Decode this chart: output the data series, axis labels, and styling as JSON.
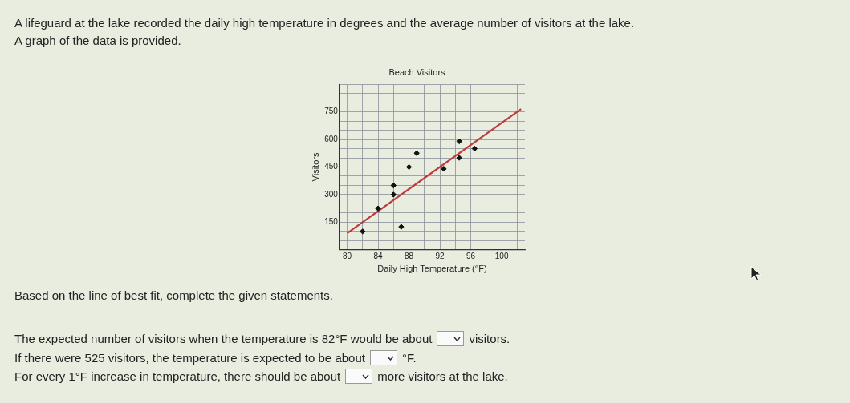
{
  "chart_data": {
    "type": "scatter",
    "title": "Beach Visitors",
    "xlabel": "Daily High Temperature (°F)",
    "ylabel": "Visitors",
    "x": [
      82,
      84,
      86,
      86,
      87,
      88,
      89,
      92.5,
      94.5,
      94.5,
      96.5
    ],
    "series": [
      {
        "marker": "diamond",
        "color": "#111111",
        "values": [
          100,
          225,
          350,
          300,
          125,
          450,
          525,
          440,
          500,
          590,
          550
        ]
      },
      {
        "type": "line",
        "marker": "none",
        "color": "#c0393b",
        "x": [
          80,
          102.5
        ],
        "values": [
          90,
          765
        ]
      }
    ],
    "grid": true,
    "legend": false,
    "xlim": [
      79,
      103
    ],
    "ylim": [
      0,
      900
    ],
    "xticks": [
      80,
      {
        "value": 82,
        "label": null
      },
      84,
      {
        "value": 86,
        "label": null
      },
      88,
      {
        "value": 90,
        "label": null
      },
      92,
      {
        "value": 94,
        "label": null
      },
      96,
      {
        "value": 98,
        "label": null
      },
      100,
      {
        "value": 102,
        "label": null
      }
    ],
    "yticks": [
      {
        "value": 0,
        "label": null
      },
      {
        "value": 50,
        "label": null
      },
      {
        "value": 100,
        "label": null
      },
      150,
      {
        "value": 200,
        "label": null
      },
      {
        "value": 250,
        "label": null
      },
      300,
      {
        "value": 350,
        "label": null
      },
      {
        "value": 400,
        "label": null
      },
      450,
      {
        "value": 500,
        "label": null
      },
      {
        "value": 550,
        "label": null
      },
      600,
      {
        "value": 650,
        "label": null
      },
      {
        "value": 700,
        "label": null
      },
      750,
      {
        "value": 800,
        "label": null
      },
      {
        "value": 850,
        "label": null
      },
      {
        "value": 900,
        "label": null
      }
    ],
    "annotations": [
      "A lifeguard at the lake recorded the daily high temperature in degrees and the average number of visitors at the lake.",
      "A graph of the data is provided.",
      "Based on the line of best fit, complete the given statements.",
      "The expected number of visitors when the temperature is 82°F would be about",
      "visitors.",
      "If there were 525 visitors, the temperature is expected to be about",
      "°F.",
      "For every 1°F increase in temperature, there should be about",
      "more visitors at the lake."
    ]
  }
}
